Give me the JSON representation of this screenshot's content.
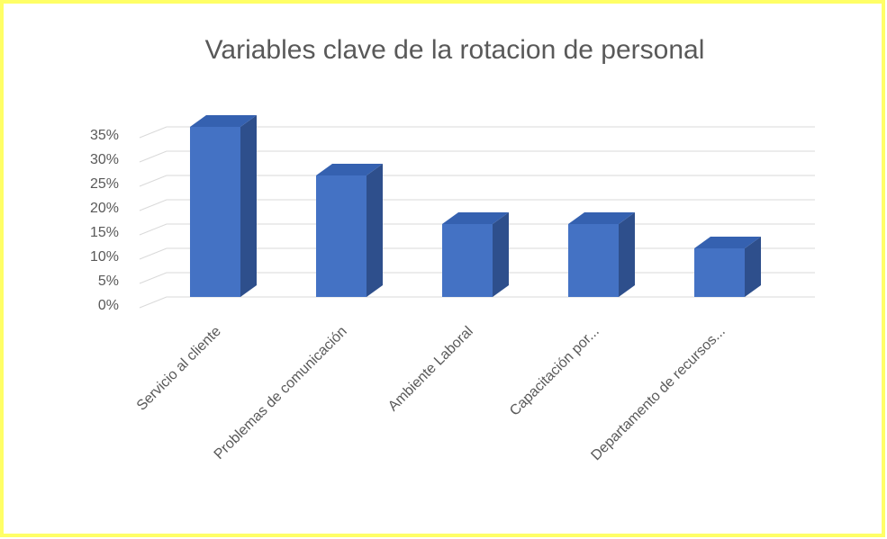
{
  "chart_data": {
    "type": "bar",
    "title": "Variables clave de la rotacion de personal",
    "categories": [
      "Servicio al cliente",
      "Problemas de comunicación",
      "Ambiente Laboral",
      "Capacitación por...",
      "Departamento de recursos..."
    ],
    "values": [
      35,
      25,
      15,
      15,
      10
    ],
    "color": "#4472c4",
    "ylim": [
      0,
      35
    ],
    "yticks": [
      {
        "value": 0,
        "label": "0%"
      },
      {
        "value": 5,
        "label": "5%"
      },
      {
        "value": 10,
        "label": "10%"
      },
      {
        "value": 15,
        "label": "15%"
      },
      {
        "value": 20,
        "label": "20%"
      },
      {
        "value": 25,
        "label": "25%"
      },
      {
        "value": 30,
        "label": "30%"
      },
      {
        "value": 35,
        "label": "35%"
      }
    ],
    "grid": true
  }
}
